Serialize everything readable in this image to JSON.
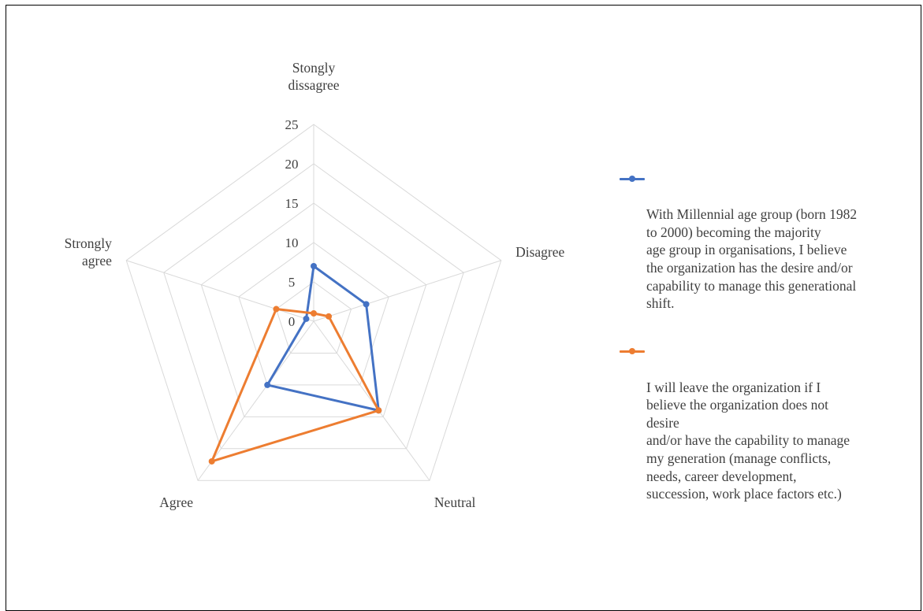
{
  "chart_data": {
    "type": "radar",
    "categories": [
      "Stongly dissagree",
      "Disagree",
      "Neutral",
      "Agree",
      "Strongly agree"
    ],
    "category_labels": [
      [
        "Stongly",
        "dissagree"
      ],
      [
        "Disagree"
      ],
      [
        "Neutral"
      ],
      [
        "Agree"
      ],
      [
        "Strongly",
        "agree"
      ]
    ],
    "r_ticks": [
      "0",
      "5",
      "10",
      "15",
      "20",
      "25"
    ],
    "rlim": [
      0,
      25
    ],
    "grid": true,
    "legend_position": "right",
    "series": [
      {
        "name": "With Millennial age group (born 1982\nto 2000) becoming the majority\nage group in organisations, I believe\nthe organization has the desire and/or\ncapability to manage this generational\nshift.",
        "values": [
          7,
          7,
          14,
          10,
          1
        ],
        "color": "#4472C4"
      },
      {
        "name": "I will leave the organization if I\nbelieve the organization does not\ndesire\nand/or have the capability to manage\nmy generation (manage conflicts,\nneeds, career development,\nsuccession, work place factors etc.)",
        "values": [
          1,
          2,
          14,
          22,
          5
        ],
        "color": "#ED7D31"
      }
    ],
    "grid_color": "#D9D9D9",
    "text_color": "#404040"
  }
}
